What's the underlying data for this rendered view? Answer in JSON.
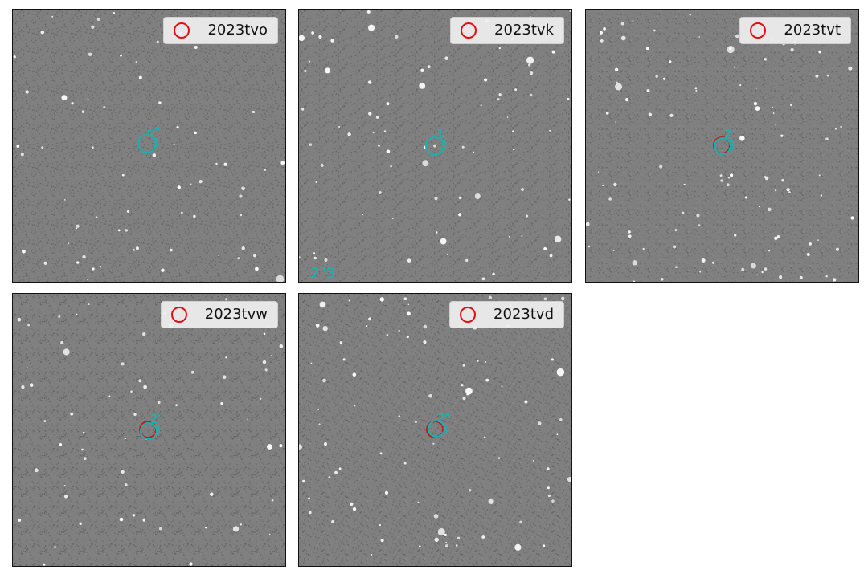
{
  "panels": [
    {
      "id": "p1",
      "legend_label": "2023tvo",
      "tag_top": "6\"",
      "tag_bottom": "3",
      "seed": 11,
      "density": 70
    },
    {
      "id": "p2",
      "legend_label": "2023tvk",
      "tag_top": "1\"",
      "tag_bottom": "3",
      "seed": 23,
      "density": 85,
      "corner_note": "2\"3"
    },
    {
      "id": "p3",
      "legend_label": "2023tvt",
      "tag_top": "2\"",
      "tag_bottom": "3",
      "seed": 37,
      "density": 110
    },
    {
      "id": "p4",
      "legend_label": "2023tvw",
      "tag_top": "2\"",
      "tag_bottom": "3",
      "seed": 51,
      "density": 65
    },
    {
      "id": "p5",
      "legend_label": "2023tvd",
      "tag_top": "2\"",
      "tag_bottom": "3",
      "seed": 67,
      "density": 90
    }
  ],
  "colors": {
    "predicted_ring": "#e01010",
    "observed_ring": "#1ab0b0",
    "sky": "#808080"
  }
}
